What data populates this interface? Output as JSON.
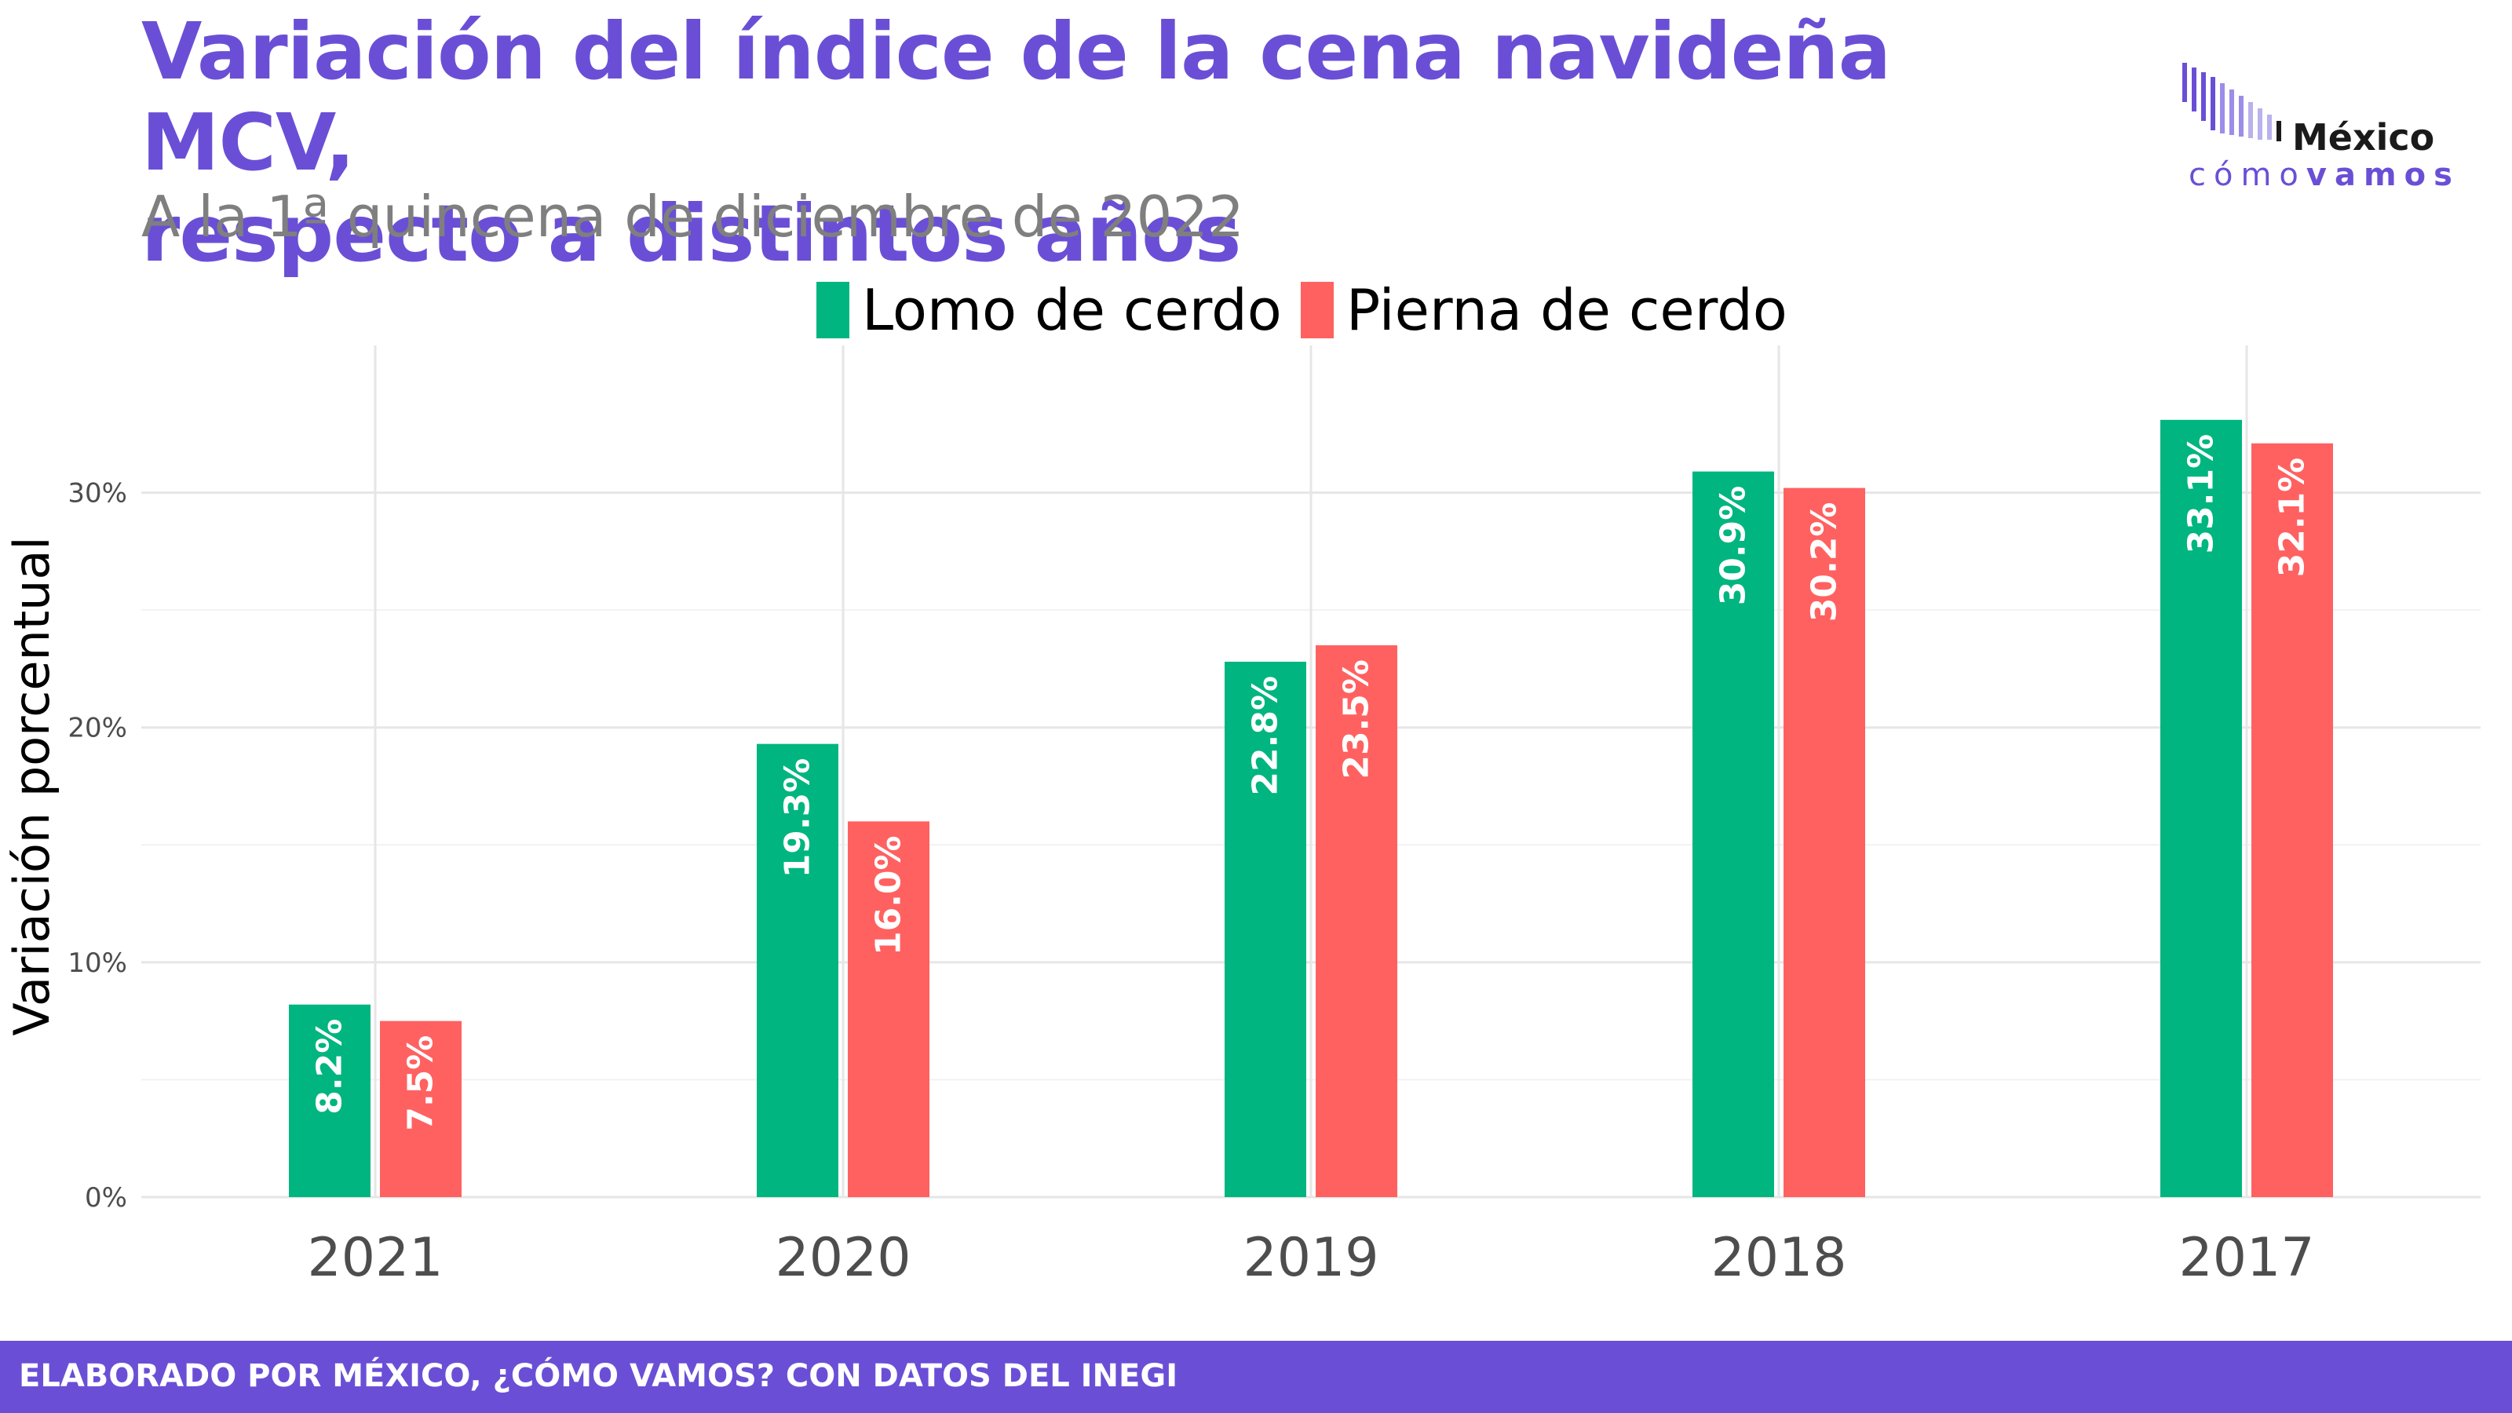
{
  "header": {
    "title_line1": "Variación del índice de la cena navideña MCV,",
    "title_line2": "respecto a distintos años",
    "subtitle": "A la 1ª quincena de diciembre de 2022"
  },
  "logo": {
    "word": "México",
    "tagline_light": "cómo",
    "tagline_bold": "vamos"
  },
  "footer": {
    "text": "ELABORADO POR MÉXICO, ¿CÓMO VAMOS? CON DATOS DEL INEGI"
  },
  "colors": {
    "title": "#6a4fd6",
    "footer_bg": "#6a4fd6",
    "lomo": "#00b57f",
    "pierna": "#ff6161",
    "grid": "#e6e6e6"
  },
  "chart_data": {
    "type": "bar",
    "categories": [
      "2021",
      "2020",
      "2019",
      "2018",
      "2017"
    ],
    "series": [
      {
        "name": "Lomo de cerdo",
        "values": [
          8.2,
          19.3,
          22.8,
          30.9,
          33.1
        ],
        "labels": [
          "8.2%",
          "19.3%",
          "22.8%",
          "30.9%",
          "33.1%"
        ]
      },
      {
        "name": "Pierna de cerdo",
        "values": [
          7.5,
          16.0,
          23.5,
          30.2,
          32.1
        ],
        "labels": [
          "7.5%",
          "16.0%",
          "23.5%",
          "30.2%",
          "32.1%"
        ]
      }
    ],
    "ylabel": "Variación porcentual",
    "xlabel": "",
    "ylim": [
      0,
      35
    ],
    "yticks": [
      0,
      10,
      20,
      30
    ],
    "ytick_labels": [
      "0%",
      "10%",
      "20%",
      "30%"
    ],
    "grid": true,
    "legend_position": "top-center"
  }
}
